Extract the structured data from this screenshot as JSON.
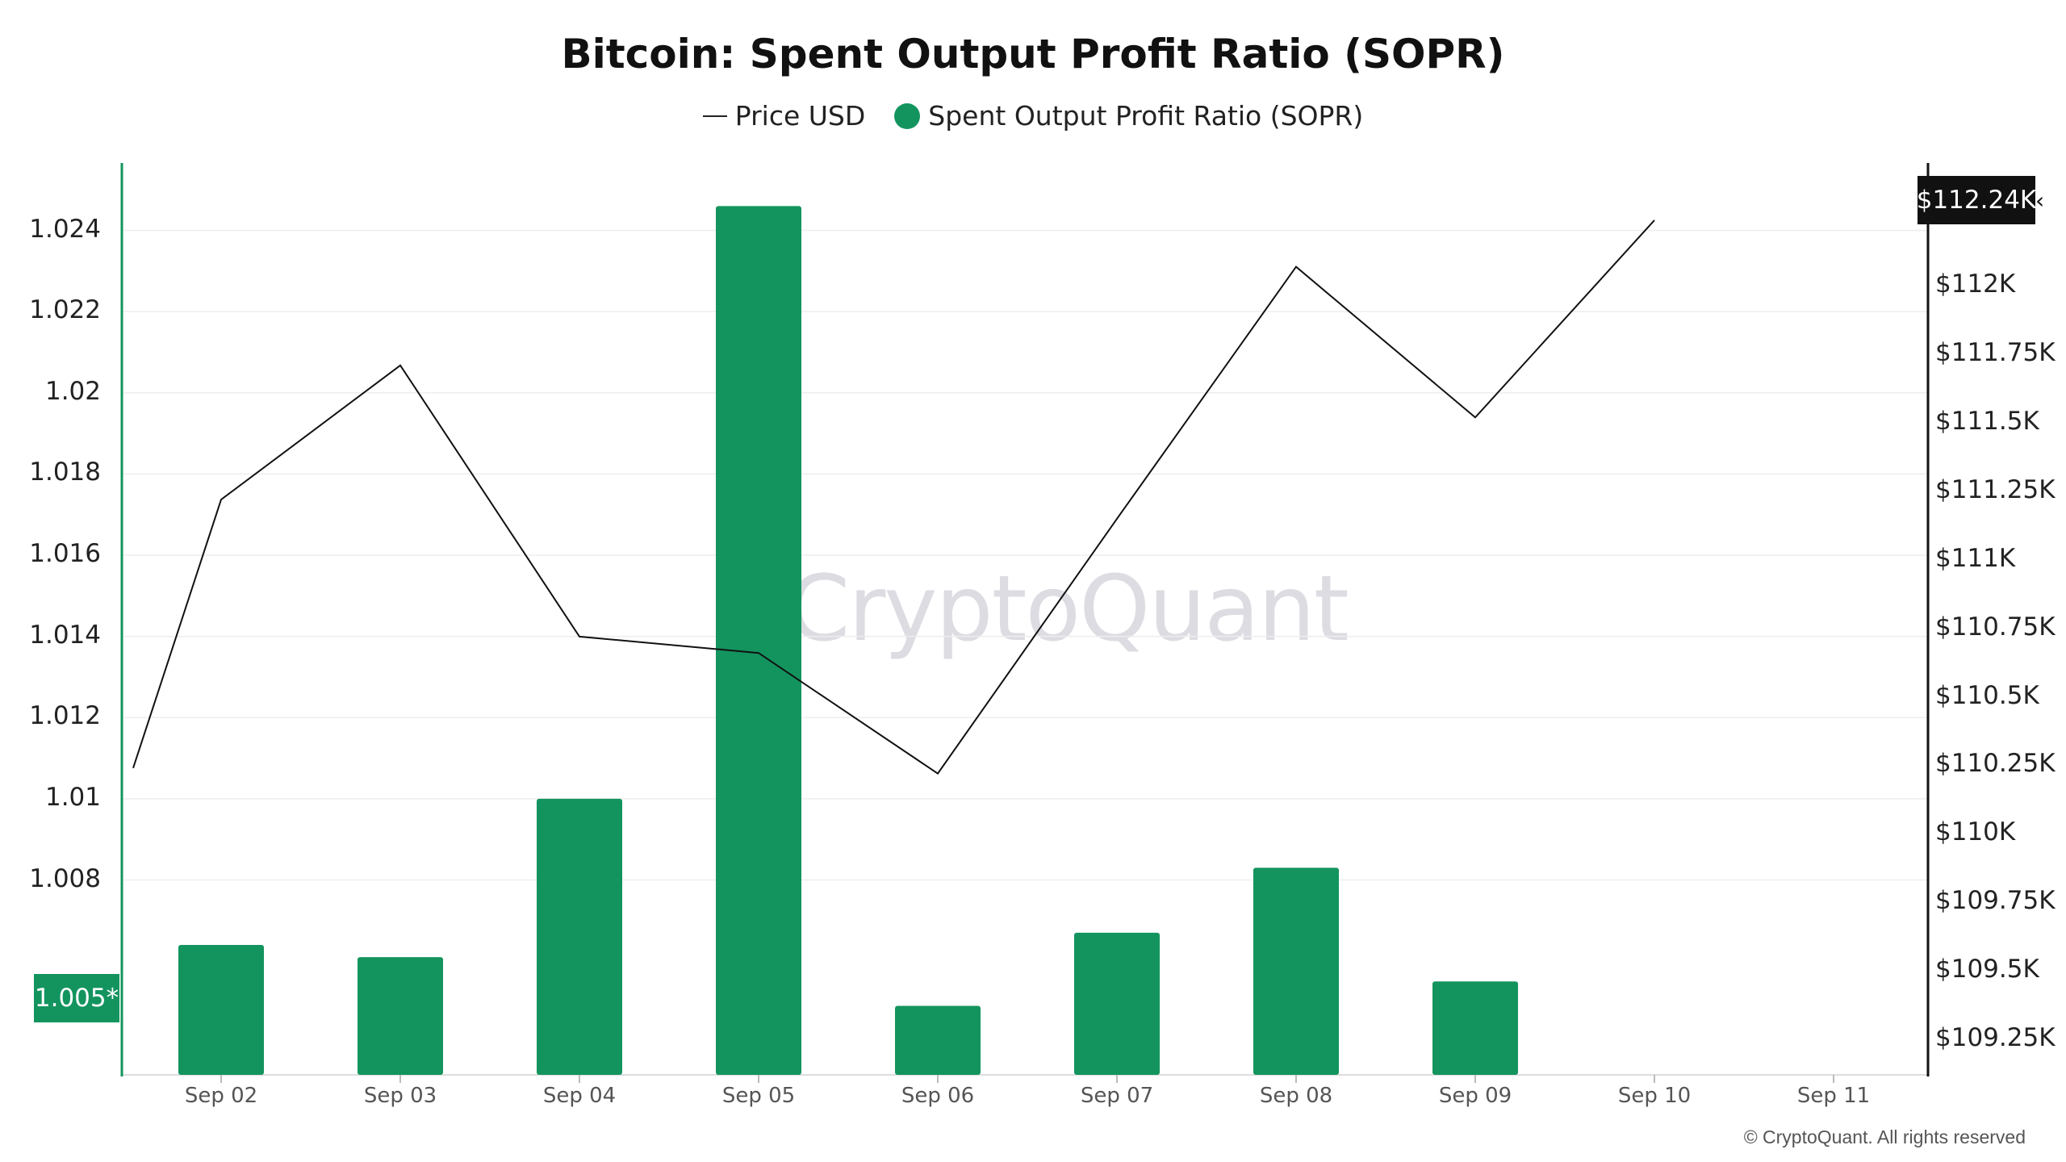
{
  "title": "Bitcoin: Spent Output Profit Ratio (SOPR)",
  "legend": {
    "price_label": "Price USD",
    "sopr_label": "Spent Output Profit Ratio (SOPR)"
  },
  "watermark": "CryptoQuant",
  "copyright": "© CryptoQuant. All rights reserved",
  "left_axis_badge": "1.005*",
  "right_axis_badge": "$112.24K",
  "colors": {
    "bar": "#13945f",
    "price_line": "#111111",
    "left_axis": "#13945f",
    "right_axis": "#111111",
    "grid": "#eeeeee"
  },
  "chart_data": {
    "type": "bar",
    "categories": [
      "Sep 02",
      "Sep 03",
      "Sep 04",
      "Sep 05",
      "Sep 06",
      "Sep 07",
      "Sep 08",
      "Sep 09",
      "Sep 10",
      "Sep 11"
    ],
    "series": [
      {
        "name": "Spent Output Profit Ratio (SOPR)",
        "type": "bar",
        "axis": "left",
        "values": [
          1.0064,
          1.0061,
          1.01,
          1.0246,
          1.0049,
          1.0067,
          1.0083,
          1.0055,
          null,
          null
        ]
      },
      {
        "name": "Price USD",
        "type": "line",
        "axis": "right",
        "x": [
          "Sep 01",
          "Sep 02",
          "Sep 03",
          "Sep 04",
          "Sep 05",
          "Sep 06",
          "Sep 07",
          "Sep 08",
          "Sep 09",
          "Sep 10"
        ],
        "values": [
          110240,
          111220,
          111710,
          110720,
          110660,
          110220,
          111150,
          112070,
          111520,
          112240
        ]
      }
    ],
    "left_axis": {
      "ticks": [
        1.008,
        1.01,
        1.012,
        1.014,
        1.016,
        1.018,
        1.02,
        1.022,
        1.024
      ],
      "tick_labels": [
        "1.008",
        "1.01",
        "1.012",
        "1.014",
        "1.016",
        "1.018",
        "1.02",
        "1.022",
        "1.024"
      ],
      "range": [
        1.0032,
        1.0256
      ]
    },
    "right_axis": {
      "ticks": [
        109250,
        109500,
        109750,
        110000,
        110250,
        110500,
        110750,
        111000,
        111250,
        111500,
        111750,
        112000
      ],
      "tick_labels": [
        "$109.25K",
        "$109.5K",
        "$109.75K",
        "$110K",
        "$110.25K",
        "$110.5K",
        "$110.75K",
        "$111K",
        "$111.25K",
        "$111.5K",
        "$111.75K",
        "$112K"
      ],
      "range": [
        109120,
        112440
      ]
    },
    "grid": true
  }
}
